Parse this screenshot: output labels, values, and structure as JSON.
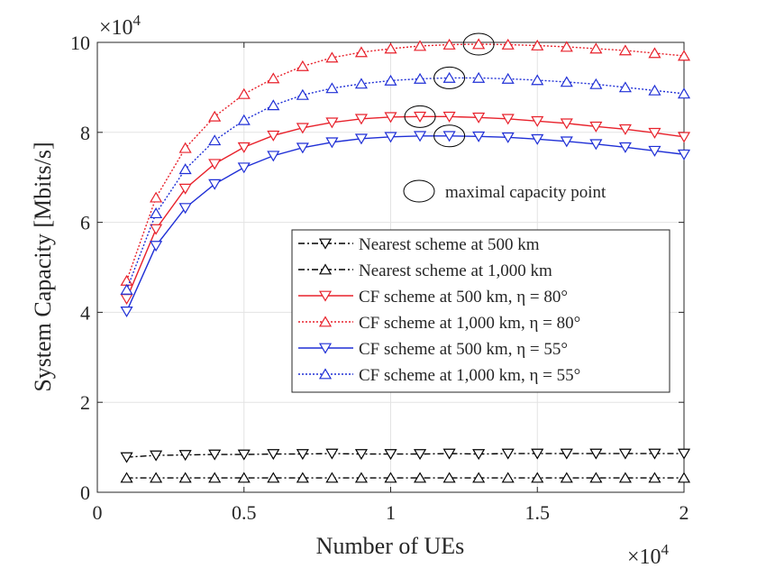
{
  "chart_data": {
    "type": "line",
    "title": "",
    "xlabel": "Number of UEs",
    "ylabel": "System Capacity [Mbits/s]",
    "x_scale_label": "×10",
    "x_scale_exp": "4",
    "y_scale_label": "×10",
    "y_scale_exp": "4",
    "xlim": [
      0,
      2
    ],
    "ylim": [
      0,
      10
    ],
    "xticks": [
      0,
      0.5,
      1,
      1.5,
      2
    ],
    "xtick_labels": [
      "0",
      "0.5",
      "1",
      "1.5",
      "2"
    ],
    "yticks": [
      0,
      2,
      4,
      6,
      8,
      10
    ],
    "ytick_labels": [
      "0",
      "2",
      "4",
      "6",
      "8",
      "10"
    ],
    "grid": true,
    "x": [
      0.1,
      0.2,
      0.3,
      0.4,
      0.5,
      0.6,
      0.7,
      0.8,
      0.9,
      1.0,
      1.1,
      1.2,
      1.3,
      1.4,
      1.5,
      1.6,
      1.7,
      1.8,
      1.9,
      2.0
    ],
    "series": [
      {
        "name": "Nearest scheme at 500 km",
        "color": "#000000",
        "dash": "dashdot",
        "marker": "triangle-down",
        "values": [
          0.78,
          0.82,
          0.83,
          0.84,
          0.84,
          0.85,
          0.85,
          0.86,
          0.85,
          0.85,
          0.85,
          0.86,
          0.85,
          0.86,
          0.86,
          0.86,
          0.86,
          0.86,
          0.86,
          0.86
        ]
      },
      {
        "name": "Nearest scheme at 1,000 km",
        "color": "#000000",
        "dash": "dashdot",
        "marker": "triangle-up",
        "values": [
          0.32,
          0.32,
          0.32,
          0.32,
          0.32,
          0.32,
          0.32,
          0.32,
          0.32,
          0.32,
          0.32,
          0.32,
          0.32,
          0.32,
          0.32,
          0.32,
          0.32,
          0.32,
          0.32,
          0.32
        ]
      },
      {
        "name": "CF scheme at 500 km, η = 80°",
        "color": "#e8212b",
        "dash": "solid",
        "marker": "triangle-down",
        "values": [
          4.3,
          5.85,
          6.75,
          7.3,
          7.67,
          7.93,
          8.1,
          8.22,
          8.3,
          8.34,
          8.35,
          8.35,
          8.33,
          8.3,
          8.25,
          8.2,
          8.13,
          8.07,
          7.99,
          7.9
        ]
      },
      {
        "name": "CF scheme at 1,000 km, η = 80°",
        "color": "#e8212b",
        "dash": "dotted",
        "marker": "triangle-up",
        "values": [
          4.7,
          6.55,
          7.65,
          8.35,
          8.85,
          9.2,
          9.47,
          9.66,
          9.78,
          9.86,
          9.92,
          9.95,
          9.96,
          9.95,
          9.93,
          9.9,
          9.86,
          9.82,
          9.76,
          9.7
        ]
      },
      {
        "name": "CF scheme at 500 km, η = 55°",
        "color": "#1f2fd6",
        "dash": "solid",
        "marker": "triangle-down",
        "values": [
          4.02,
          5.48,
          6.32,
          6.85,
          7.22,
          7.48,
          7.66,
          7.78,
          7.86,
          7.9,
          7.92,
          7.92,
          7.91,
          7.89,
          7.85,
          7.8,
          7.74,
          7.67,
          7.59,
          7.51
        ]
      },
      {
        "name": "CF scheme at 1,000 km, η = 55°",
        "color": "#1f2fd6",
        "dash": "dotted",
        "marker": "triangle-up",
        "values": [
          4.5,
          6.2,
          7.18,
          7.82,
          8.27,
          8.6,
          8.83,
          8.98,
          9.08,
          9.15,
          9.19,
          9.21,
          9.21,
          9.19,
          9.16,
          9.12,
          9.07,
          9.0,
          8.93,
          8.86
        ]
      }
    ],
    "annotation": {
      "label": "maximal capacity point",
      "points": [
        {
          "x": 1.3,
          "y": 9.96
        },
        {
          "x": 1.2,
          "y": 9.21
        },
        {
          "x": 1.1,
          "y": 8.35
        },
        {
          "x": 1.2,
          "y": 7.92
        }
      ]
    },
    "legend_position": "right-middle"
  }
}
